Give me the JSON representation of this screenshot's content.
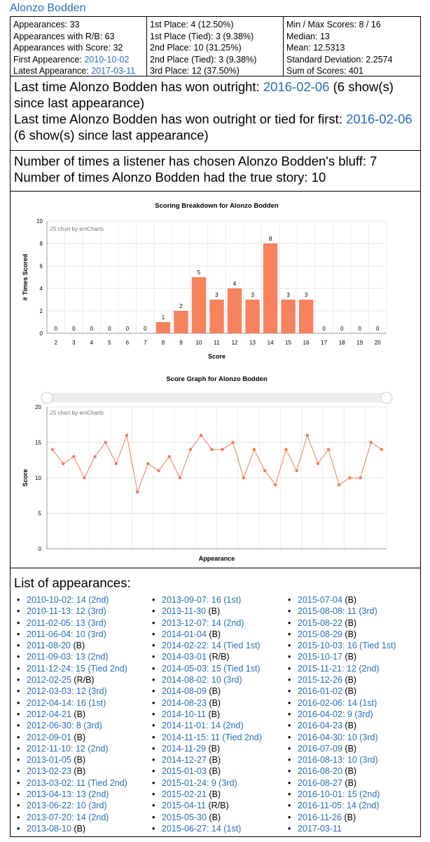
{
  "page": {
    "title": "Alonzo Bodden"
  },
  "stats": {
    "col1": {
      "appearances": "Appearances: 33",
      "appearances_rb": "Appearances with R/B: 63",
      "appearances_score": "Appearances with Score: 32",
      "first_label": "First Appearence: ",
      "first_link": "2010-10-02",
      "latest_label": "Latest Appearance: ",
      "latest_link": "2017-03-11"
    },
    "col2": {
      "first": "1st Place: 4 (12.50%)",
      "first_tied": "1st Place (Tied): 3 (9.38%)",
      "second": "2nd Place: 10 (31.25%)",
      "second_tied": "2nd Place (Tied): 3 (9.38%)",
      "third": "3rd Place: 12 (37.50%)"
    },
    "col3": {
      "minmax": "Min / Max Scores: 8 / 16",
      "median": "Median: 13",
      "mean": "Mean: 12.5313",
      "stddev": "Standard Deviation: 2.2574",
      "sum": "Sum of Scores: 401"
    }
  },
  "wins": {
    "outright_label": "Last time Alonzo Bodden has won outright: ",
    "outright_link": "2016-02-06",
    "outright_suffix": " (6 show(s) since last appearance)",
    "tied_label": "Last time Alonzo Bodden has won outright or tied for first: ",
    "tied_link": "2016-02-06",
    "tied_suffix": " (6 show(s) since last appearance)"
  },
  "bluff": {
    "chosen": "Number of times a listener has chosen Alonzo Bodden's bluff: 7",
    "true_story": "Number of times Alonzo Bodden had the true story: 10"
  },
  "colors": {
    "bar": "#f6825e",
    "line": "#f47a55",
    "link": "#2a6ebb"
  },
  "chart_data": [
    {
      "type": "bar",
      "title": "Scoring Breakdown for Alonzo Bodden",
      "xlabel": "Score",
      "ylabel": "# Times Scored",
      "credit": "JS chart by amCharts",
      "categories": [
        "2",
        "3",
        "4",
        "5",
        "6",
        "7",
        "8",
        "9",
        "10",
        "11",
        "12",
        "13",
        "14",
        "15",
        "16",
        "17",
        "18",
        "19",
        "20"
      ],
      "values": [
        0,
        0,
        0,
        0,
        0,
        0,
        1,
        2,
        5,
        3,
        4,
        3,
        8,
        3,
        3,
        0,
        0,
        0,
        0
      ],
      "ylim": [
        0,
        10
      ],
      "yticks": [
        0,
        2,
        4,
        6,
        8,
        10
      ]
    },
    {
      "type": "line",
      "title": "Score Graph for Alonzo Bodden",
      "xlabel": "Appearance",
      "ylabel": "Score",
      "credit": "JS chart by amCharts",
      "values": [
        14,
        12,
        13,
        10,
        13,
        15,
        12,
        16,
        8,
        12,
        11,
        13,
        10,
        14,
        16,
        14,
        14,
        15,
        10,
        14,
        11,
        9,
        14,
        11,
        16,
        12,
        14,
        9,
        10,
        10,
        15,
        14
      ],
      "ylim": [
        0,
        20
      ],
      "yticks": [
        0,
        5,
        10,
        15,
        20
      ]
    }
  ],
  "list": {
    "heading": "List of appearances:",
    "col_a": [
      {
        "link": "2010-10-02: 14 (2nd)",
        "suffix": ""
      },
      {
        "link": "2010-11-13: 12 (3rd)",
        "suffix": ""
      },
      {
        "link": "2011-02-05: 13 (3rd)",
        "suffix": ""
      },
      {
        "link": "2011-06-04: 10 (3rd)",
        "suffix": ""
      },
      {
        "link": "2011-08-20",
        "suffix": " (B)"
      },
      {
        "link": "2011-09-03: 13 (2nd)",
        "suffix": ""
      },
      {
        "link": "2011-12-24: 15 (Tied 2nd)",
        "suffix": ""
      },
      {
        "link": "2012-02-25",
        "suffix": " (R/B)"
      },
      {
        "link": "2012-03-03: 12 (3rd)",
        "suffix": ""
      },
      {
        "link": "2012-04-14: 16 (1st)",
        "suffix": ""
      },
      {
        "link": "2012-04-21",
        "suffix": " (B)"
      },
      {
        "link": "2012-06-30: 8 (3rd)",
        "suffix": ""
      },
      {
        "link": "2012-09-01",
        "suffix": " (B)"
      },
      {
        "link": "2012-11-10: 12 (2nd)",
        "suffix": ""
      },
      {
        "link": "2013-01-05",
        "suffix": " (B)"
      },
      {
        "link": "2013-02-23",
        "suffix": " (B)"
      },
      {
        "link": "2013-03-02: 11 (Tied 2nd)",
        "suffix": ""
      },
      {
        "link": "2013-04-13: 13 (2nd)",
        "suffix": ""
      },
      {
        "link": "2013-06-22: 10 (3rd)",
        "suffix": ""
      },
      {
        "link": "2013-07-20: 14 (2nd)",
        "suffix": ""
      },
      {
        "link": "2013-08-10",
        "suffix": " (B)"
      }
    ],
    "col_b": [
      {
        "link": "2013-09-07: 16 (1st)",
        "suffix": ""
      },
      {
        "link": "2013-11-30",
        "suffix": " (B)"
      },
      {
        "link": "2013-12-07: 14 (2nd)",
        "suffix": ""
      },
      {
        "link": "2014-01-04",
        "suffix": " (B)"
      },
      {
        "link": "2014-02-22: 14 (Tied 1st)",
        "suffix": ""
      },
      {
        "link": "2014-03-01",
        "suffix": " (R/B)"
      },
      {
        "link": "2014-05-03: 15 (Tied 1st)",
        "suffix": ""
      },
      {
        "link": "2014-08-02: 10 (3rd)",
        "suffix": ""
      },
      {
        "link": "2014-08-09",
        "suffix": " (B)"
      },
      {
        "link": "2014-08-23",
        "suffix": " (B)"
      },
      {
        "link": "2014-10-11",
        "suffix": " (B)"
      },
      {
        "link": "2014-11-01: 14 (2nd)",
        "suffix": ""
      },
      {
        "link": "2014-11-15: 11 (Tied 2nd)",
        "suffix": ""
      },
      {
        "link": "2014-11-29",
        "suffix": " (B)"
      },
      {
        "link": "2014-12-27",
        "suffix": " (B)"
      },
      {
        "link": "2015-01-03",
        "suffix": " (B)"
      },
      {
        "link": "2015-01-24: 9 (3rd)",
        "suffix": ""
      },
      {
        "link": "2015-02-21",
        "suffix": " (B)"
      },
      {
        "link": "2015-04-11",
        "suffix": " (R/B)"
      },
      {
        "link": "2015-05-30",
        "suffix": " (B)"
      },
      {
        "link": "2015-06-27: 14 (1st)",
        "suffix": ""
      }
    ],
    "col_c": [
      {
        "link": "2015-07-04",
        "suffix": " (B)"
      },
      {
        "link": "2015-08-08: 11 (3rd)",
        "suffix": ""
      },
      {
        "link": "2015-08-22",
        "suffix": " (B)"
      },
      {
        "link": "2015-08-29",
        "suffix": " (B)"
      },
      {
        "link": "2015-10-03: 16 (Tied 1st)",
        "suffix": ""
      },
      {
        "link": "2015-10-17",
        "suffix": " (B)"
      },
      {
        "link": "2015-11-21: 12 (2nd)",
        "suffix": ""
      },
      {
        "link": "2015-12-26",
        "suffix": " (B)"
      },
      {
        "link": "2016-01-02",
        "suffix": " (B)"
      },
      {
        "link": "2016-02-06: 14 (1st)",
        "suffix": ""
      },
      {
        "link": "2016-04-02: 9 (3rd)",
        "suffix": ""
      },
      {
        "link": "2016-04-23",
        "suffix": " (B)"
      },
      {
        "link": "2016-04-30: 10 (3rd)",
        "suffix": ""
      },
      {
        "link": "2016-07-09",
        "suffix": " (B)"
      },
      {
        "link": "2016-08-13: 10 (3rd)",
        "suffix": ""
      },
      {
        "link": "2016-08-20",
        "suffix": " (B)"
      },
      {
        "link": "2016-08-27",
        "suffix": " (B)"
      },
      {
        "link": "2016-10-01: 15 (2nd)",
        "suffix": ""
      },
      {
        "link": "2016-11-05: 14 (2nd)",
        "suffix": ""
      },
      {
        "link": "2016-11-26",
        "suffix": " (B)"
      },
      {
        "link": "2017-03-11",
        "suffix": ""
      }
    ]
  }
}
